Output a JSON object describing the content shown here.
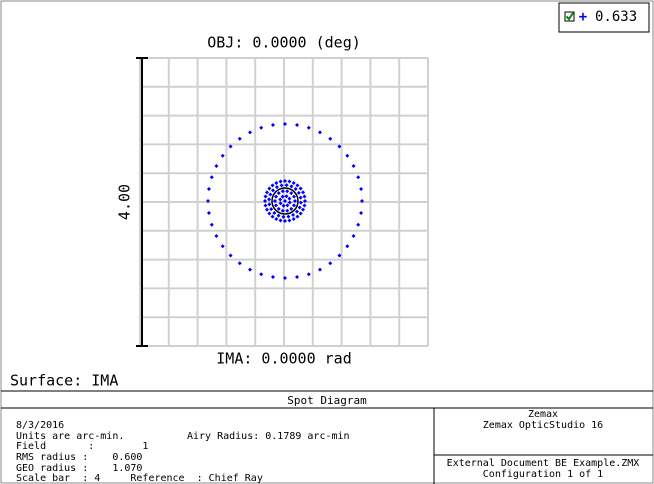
{
  "legend": {
    "symbol": "+",
    "value": "0.633"
  },
  "plot": {
    "title": "OBJ: 0.0000 (deg)",
    "scale_label": "4.00",
    "image_label": "IMA: 0.0000 rad",
    "surface": "Surface: IMA"
  },
  "panel": {
    "title": "Spot Diagram",
    "info": [
      "8/3/2016",
      "Units are arc-min.",
      "Field       :        1",
      "RMS radius :    0.600",
      "GEO radius :    1.070",
      "Scale bar  : 4     Reference  : Chief Ray"
    ],
    "airy": "Airy Radius: 0.1789 arc-min",
    "company": "Zemax",
    "product": "Zemax OpticStudio 16",
    "file": "External Document BE Example.ZMX",
    "config": "Configuration 1 of 1"
  }
}
